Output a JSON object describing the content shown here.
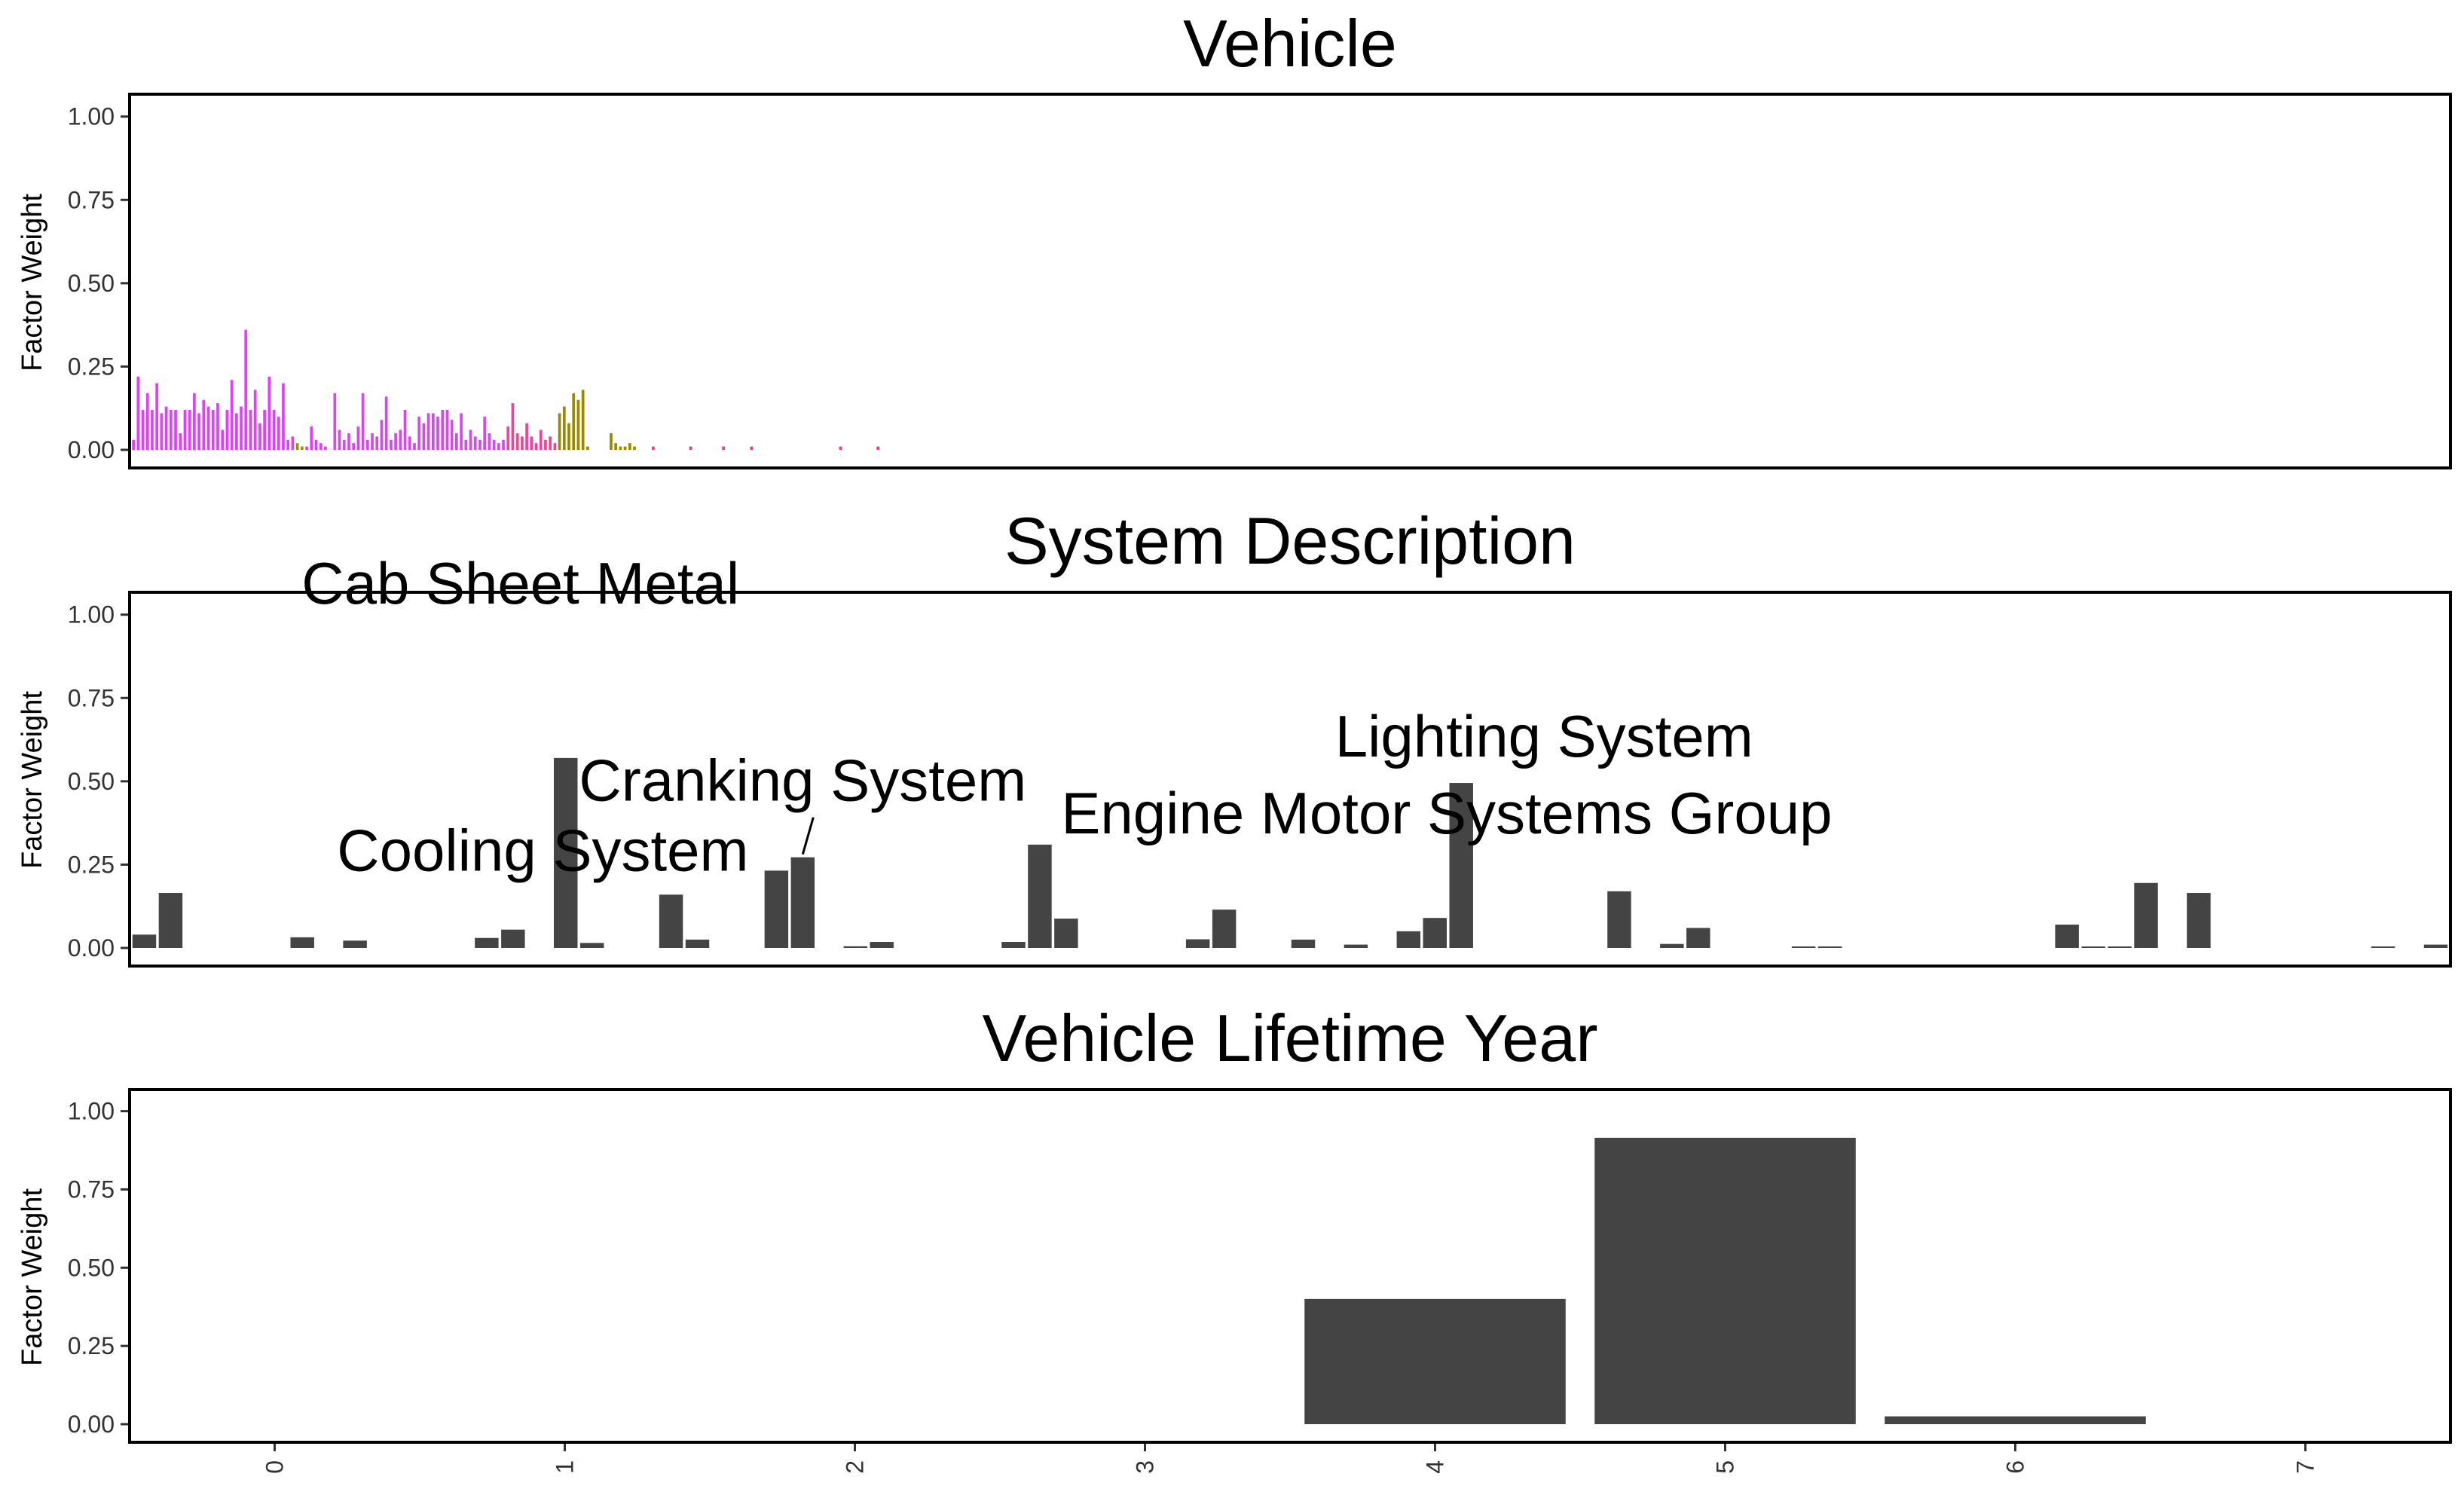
{
  "chart_data": [
    {
      "type": "bar",
      "title": "Vehicle",
      "ylabel": "Factor Weight",
      "ylim": [
        0,
        1.04
      ],
      "yticks": [
        "0.00",
        "0.25",
        "0.50",
        "0.75",
        "1.00"
      ],
      "x_axis_labels_visible": false,
      "legend": "none",
      "colors": [
        "#E040FB",
        "#D24DE8",
        "#F0449A",
        "#8F9800",
        "#9A8A00",
        "#E0418F"
      ],
      "values": [
        0.03,
        0.22,
        0.12,
        0.17,
        0.12,
        0.2,
        0.11,
        0.13,
        0.12,
        0.12,
        0.05,
        0.12,
        0.12,
        0.17,
        0.11,
        0.15,
        0.13,
        0.12,
        0.14,
        0.06,
        0.12,
        0.21,
        0.11,
        0.13,
        0.36,
        0.12,
        0.18,
        0.08,
        0.12,
        0.22,
        0.12,
        0.1,
        0.2,
        0.03,
        0.04,
        0.02,
        0.01,
        0.01,
        0.07,
        0.03,
        0.02,
        0.01,
        0.0,
        0.17,
        0.06,
        0.03,
        0.05,
        0.02,
        0.07,
        0.17,
        0.03,
        0.05,
        0.04,
        0.09,
        0.16,
        0.03,
        0.05,
        0.06,
        0.12,
        0.04,
        0.02,
        0.1,
        0.08,
        0.11,
        0.11,
        0.1,
        0.12,
        0.12,
        0.09,
        0.05,
        0.11,
        0.03,
        0.06,
        0.04,
        0.03,
        0.1,
        0.05,
        0.03,
        0.02,
        0.03,
        0.07,
        0.14,
        0.05,
        0.04,
        0.08,
        0.04,
        0.02,
        0.06,
        0.03,
        0.04,
        0.02,
        0.11,
        0.13,
        0.08,
        0.17,
        0.15,
        0.18,
        0.01,
        0.0,
        0.0,
        0.0,
        0.0,
        0.05,
        0.02,
        0.01,
        0.01,
        0.02,
        0.01,
        0.0,
        0.0,
        0.0,
        0.01,
        0.0,
        0.0,
        0.0,
        0.0,
        0.0,
        0.0,
        0.0,
        0.01,
        0.0,
        0.0,
        0.0,
        0.0,
        0.0,
        0.0,
        0.01,
        0.0,
        0.0,
        0.0,
        0.0,
        0.0,
        0.01,
        0.0,
        0.0,
        0.0,
        0.0,
        0.0,
        0.0,
        0.0,
        0.0,
        0.0,
        0.0,
        0.0,
        0.0,
        0.0,
        0.0,
        0.0,
        0.0,
        0.0,
        0.0,
        0.01,
        0.0,
        0.0,
        0.0,
        0.0,
        0.0,
        0.0,
        0.0,
        0.01,
        0.0,
        0.0,
        0.0,
        0.0,
        0.0,
        0.0,
        0.0,
        0.0,
        0.0,
        0.0,
        0.0,
        0.0,
        0.0,
        0.0,
        0.0,
        0.0,
        0.0,
        0.0,
        0.0,
        0.0,
        0.0,
        0.0,
        0.0,
        0.0,
        0.0,
        0.0,
        0.0,
        0.0,
        0.0,
        0.0,
        0.0,
        0.0,
        0.0,
        0.0,
        0.0,
        0.0,
        0.0,
        0.0,
        0.0,
        0.0,
        0.0,
        0.0,
        0.0,
        0.0,
        0.0,
        0.0,
        0.0,
        0.0,
        0.0,
        0.0
      ],
      "color_index": [
        0,
        0,
        0,
        0,
        0,
        0,
        0,
        0,
        0,
        0,
        0,
        0,
        0,
        0,
        0,
        0,
        0,
        0,
        0,
        0,
        0,
        0,
        0,
        0,
        0,
        0,
        0,
        0,
        0,
        0,
        0,
        0,
        0,
        0,
        0,
        3,
        3,
        0,
        0,
        0,
        0,
        0,
        0,
        1,
        1,
        1,
        1,
        1,
        1,
        1,
        1,
        1,
        1,
        1,
        1,
        1,
        1,
        1,
        1,
        1,
        1,
        1,
        1,
        1,
        1,
        1,
        1,
        1,
        1,
        1,
        1,
        1,
        1,
        1,
        1,
        1,
        1,
        1,
        1,
        1,
        2,
        2,
        2,
        2,
        2,
        2,
        2,
        2,
        2,
        2,
        2,
        4,
        4,
        4,
        4,
        4,
        4,
        4,
        5,
        5,
        5,
        5,
        4,
        4,
        4,
        4,
        4,
        4,
        4,
        4,
        5,
        5,
        5,
        5,
        5,
        5,
        5,
        5,
        5,
        5,
        5,
        5,
        5,
        5,
        5,
        5,
        5,
        5,
        5,
        5,
        5,
        5,
        5,
        5,
        5,
        5,
        5,
        5,
        5,
        5,
        5,
        5,
        5,
        5,
        5,
        5,
        5,
        5,
        5,
        5,
        5,
        5,
        5,
        5,
        5,
        5,
        5,
        5,
        5,
        5,
        5,
        5,
        5,
        5,
        5,
        5,
        5,
        5,
        5,
        5,
        5,
        5,
        5,
        5,
        5,
        5,
        5,
        5,
        5,
        5,
        5,
        5,
        5,
        5,
        5,
        5,
        5,
        5,
        5,
        5,
        5,
        5,
        5,
        5,
        5,
        5,
        5,
        5,
        5,
        5,
        5,
        5,
        5,
        5,
        5,
        5,
        5,
        5,
        5,
        5,
        5
      ]
    },
    {
      "type": "bar",
      "title": "System Description",
      "ylabel": "Factor Weight",
      "ylim": [
        0,
        1.04
      ],
      "yticks": [
        "0.00",
        "0.25",
        "0.50",
        "0.75",
        "1.00"
      ],
      "x_axis_labels_visible": false,
      "bar_color": "#444444",
      "values": [
        0.04,
        0.165,
        0,
        0,
        0,
        0,
        0.032,
        0,
        0.022,
        0,
        0,
        0,
        0,
        0.03,
        0.055,
        0,
        0.57,
        0.015,
        0,
        0,
        0.16,
        0.025,
        0,
        0,
        0.232,
        0.272,
        0,
        0.005,
        0.018,
        0,
        0,
        0,
        0,
        0.018,
        0.31,
        0.088,
        0,
        0,
        0,
        0,
        0.026,
        0.115,
        0,
        0,
        0.025,
        0,
        0.01,
        0,
        0.05,
        0.09,
        0.495,
        0,
        0,
        0,
        0,
        0,
        0.17,
        0,
        0.012,
        0.06,
        0,
        0,
        0,
        0.003,
        0.003,
        0,
        0,
        0,
        0,
        0,
        0,
        0,
        0,
        0.07,
        0.003,
        0.003,
        0.195,
        0,
        0.165,
        0,
        0,
        0,
        0,
        0,
        0,
        0.004,
        0,
        0.01
      ],
      "annotations": [
        {
          "label": "Cab Sheet Metal",
          "x_index": 16,
          "y": 0.57
        },
        {
          "label": "Cranking System",
          "x_index": 25,
          "y": 0.272
        },
        {
          "label": "Cooling System",
          "x_index": 24,
          "y": 0.232
        },
        {
          "label": "Lighting System",
          "x_index": 50,
          "y": 0.495
        },
        {
          "label": "Engine Motor Systems Group",
          "x_index": 34,
          "y": 0.31
        }
      ]
    },
    {
      "type": "bar",
      "title": "Vehicle Lifetime Year",
      "ylabel": "Factor Weight",
      "ylim": [
        0,
        1.04
      ],
      "yticks": [
        "0.00",
        "0.25",
        "0.50",
        "0.75",
        "1.00"
      ],
      "bar_color": "#444444",
      "categories": [
        "0",
        "1",
        "2",
        "3",
        "4",
        "5",
        "6",
        "7"
      ],
      "values": [
        0,
        0,
        0,
        0,
        0.4,
        0.915,
        0.025,
        0
      ]
    }
  ]
}
